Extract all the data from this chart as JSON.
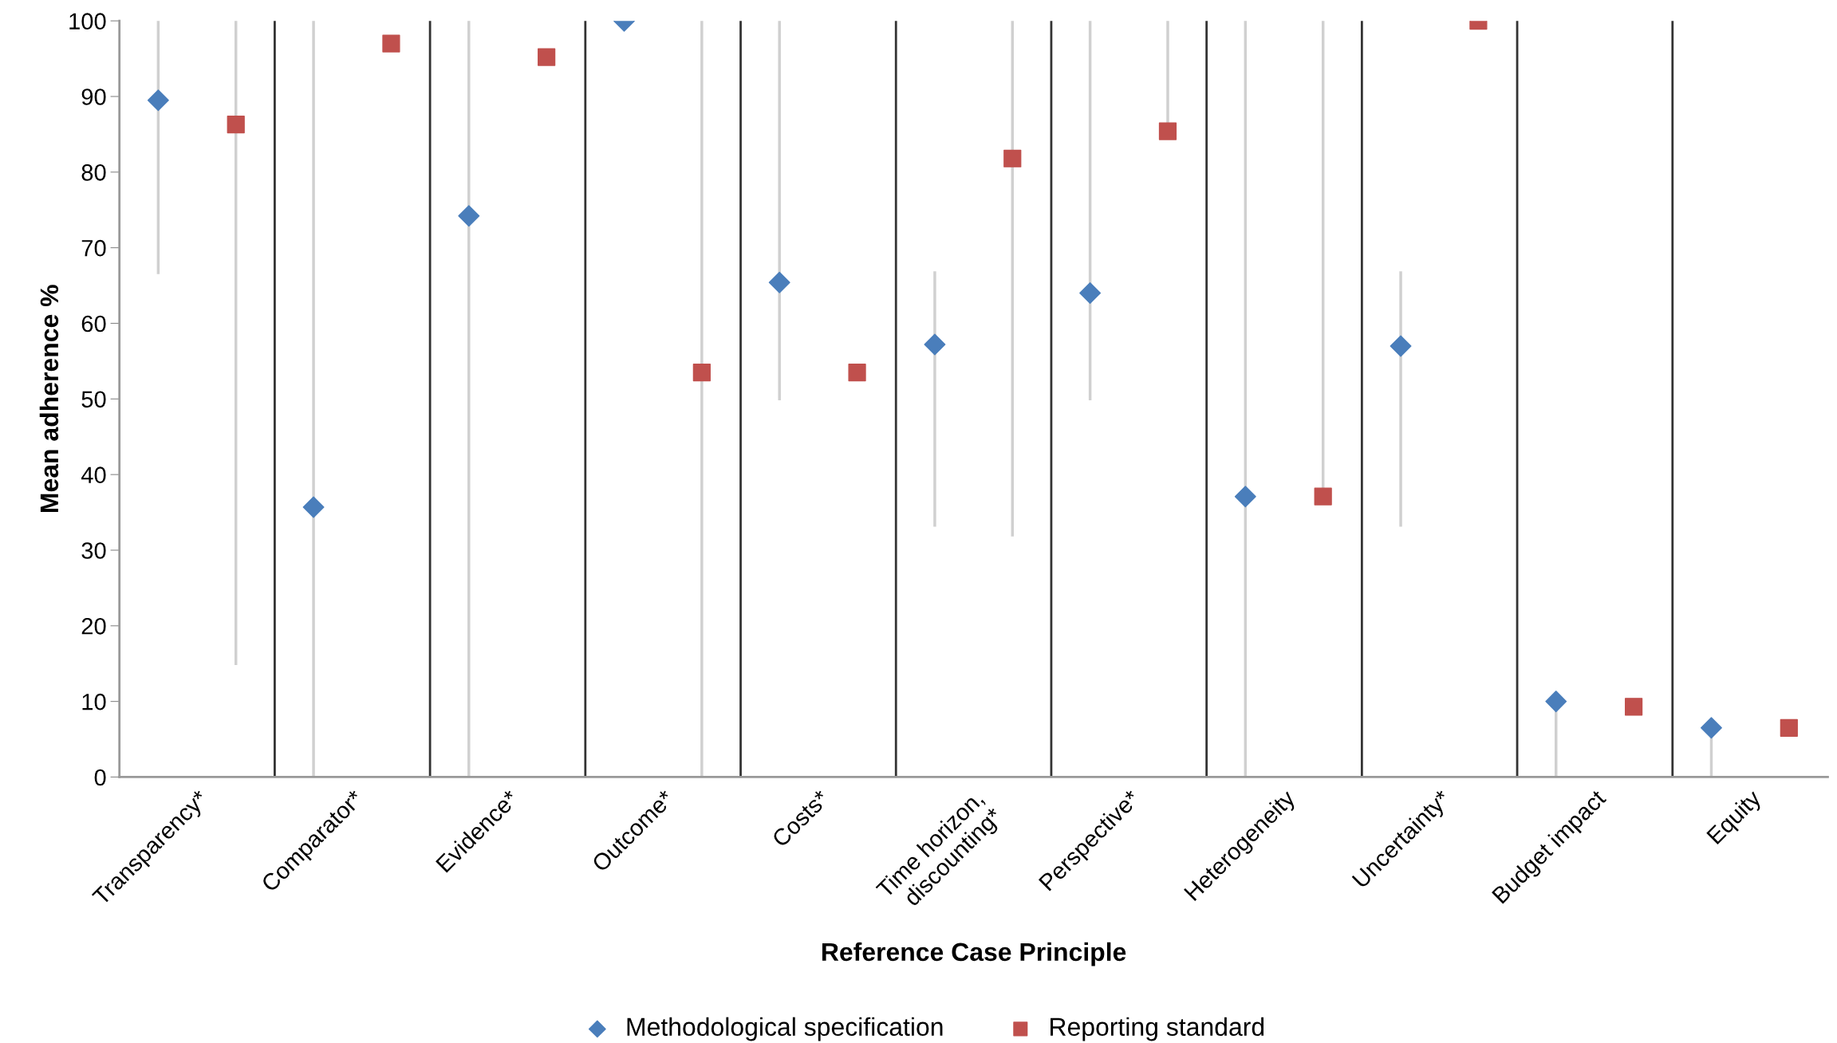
{
  "chart_data": {
    "type": "scatter",
    "xlabel": "Reference Case Principle",
    "ylabel": "Mean adherence %",
    "categories": [
      "Transparency*",
      "Comparator*",
      "Evidence*",
      "Outcome*",
      "Costs*",
      "Time horizon,\ndiscounting*",
      "Perspective*",
      "Heterogeneity",
      "Uncertainty*",
      "Budget impact",
      "Equity"
    ],
    "series": [
      {
        "name": "Methodological specification",
        "color": "#4a7ebb",
        "marker": "diamond",
        "values": [
          89.5,
          35.7,
          74.2,
          100,
          65.4,
          57.2,
          64,
          37.1,
          57,
          10,
          6.5
        ],
        "errors": [
          [
            66.7,
            100
          ],
          [
            0,
            100
          ],
          [
            0,
            100
          ],
          null,
          [
            50,
            100
          ],
          [
            33.3,
            66.7
          ],
          [
            50,
            100
          ],
          [
            0,
            100
          ],
          [
            33.3,
            66.7
          ],
          [
            0,
            10
          ],
          [
            0,
            6.5
          ]
        ]
      },
      {
        "name": "Reporting standard",
        "color": "#c0504d",
        "marker": "square",
        "values": [
          86.3,
          97,
          95.2,
          53.5,
          53.5,
          81.8,
          85.4,
          37.1,
          100,
          9.3,
          6.5
        ],
        "errors": [
          [
            15,
            100
          ],
          null,
          null,
          [
            0,
            100
          ],
          null,
          [
            32,
            100
          ],
          [
            85.4,
            100
          ],
          [
            37.1,
            100
          ],
          null,
          null,
          null
        ]
      }
    ],
    "ylim": [
      0,
      100
    ],
    "yticks": [
      0,
      10,
      20,
      30,
      40,
      50,
      60,
      70,
      80,
      90,
      100
    ],
    "grid": "x",
    "legend": "bottom"
  }
}
